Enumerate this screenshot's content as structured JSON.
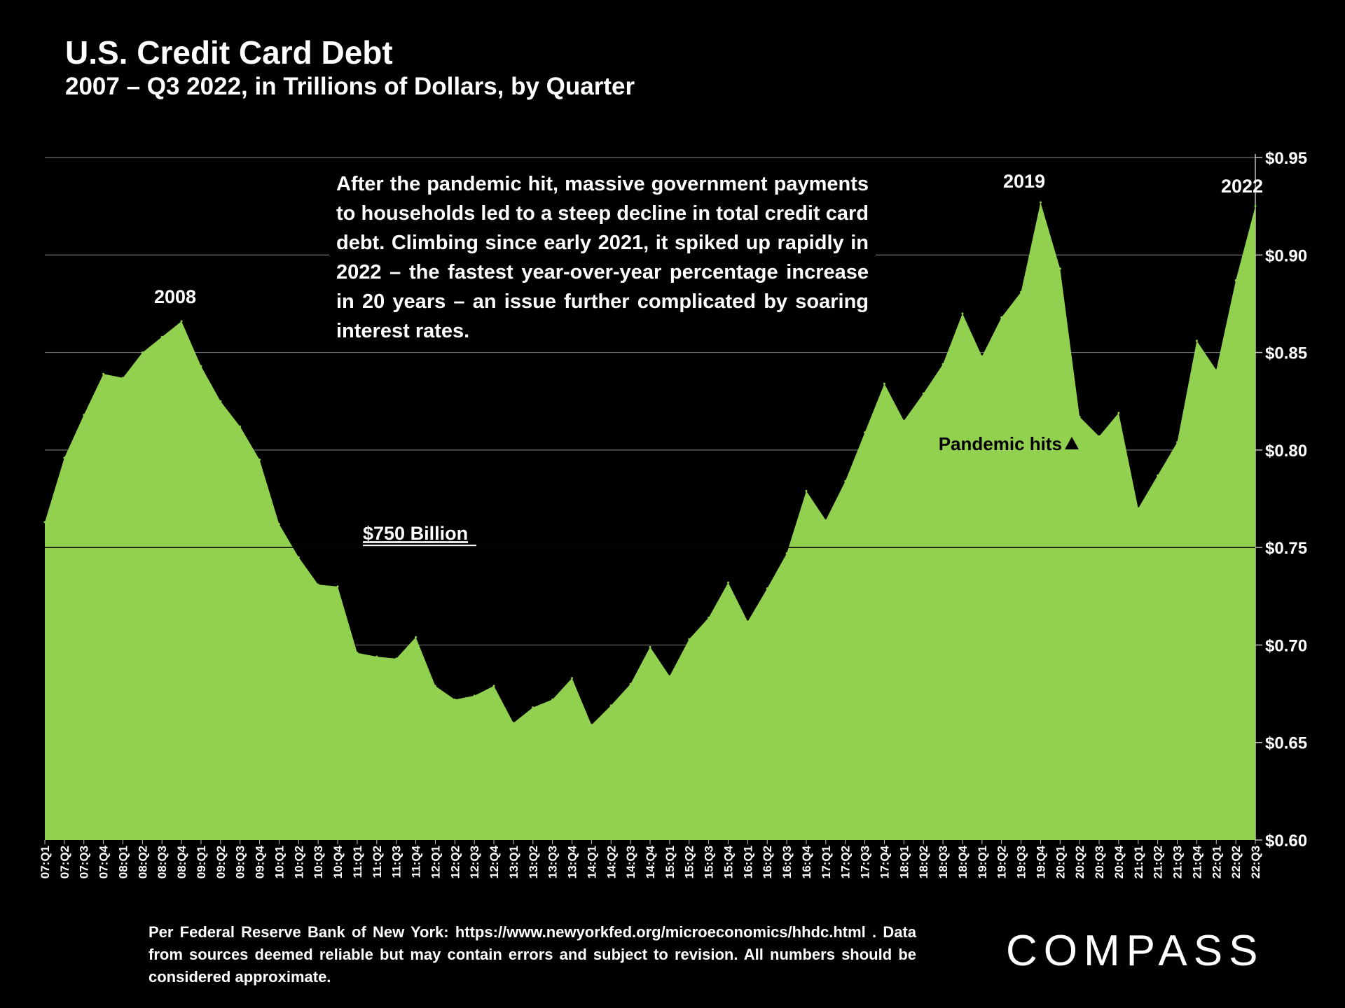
{
  "chart_data": {
    "type": "area",
    "title": "U.S. Credit Card Debt",
    "subtitle": "2007 – Q3 2022, in Trillions of Dollars, by Quarter",
    "x": [
      "07:Q1",
      "07:Q2",
      "07:Q3",
      "07:Q4",
      "08:Q1",
      "08:Q2",
      "08:Q3",
      "08:Q4",
      "09:Q1",
      "09:Q2",
      "09:Q3",
      "09:Q4",
      "10:Q1",
      "10:Q2",
      "10:Q3",
      "10:Q4",
      "11:Q1",
      "11:Q2",
      "11:Q3",
      "11:Q4",
      "12:Q1",
      "12:Q2",
      "12:Q3",
      "12:Q4",
      "13:Q1",
      "13:Q2",
      "13:Q3",
      "13:Q4",
      "14:Q1",
      "14:Q2",
      "14:Q3",
      "14:Q4",
      "15:Q1",
      "15:Q2",
      "15:Q3",
      "15:Q4",
      "16:Q1",
      "16:Q2",
      "16:Q3",
      "16:Q4",
      "17:Q1",
      "17:Q2",
      "17:Q3",
      "17:Q4",
      "18:Q1",
      "18:Q2",
      "18:Q3",
      "18:Q4",
      "19:Q1",
      "19:Q2",
      "19:Q3",
      "19:Q4",
      "20:Q1",
      "20:Q2",
      "20:Q3",
      "20:Q4",
      "21:Q1",
      "21:Q2",
      "21:Q3",
      "21:Q4",
      "22:Q1",
      "22:Q2",
      "22:Q3"
    ],
    "values": [
      0.763,
      0.796,
      0.818,
      0.839,
      0.837,
      0.85,
      0.858,
      0.866,
      0.843,
      0.825,
      0.812,
      0.795,
      0.762,
      0.745,
      0.731,
      0.73,
      0.696,
      0.694,
      0.693,
      0.704,
      0.679,
      0.672,
      0.674,
      0.679,
      0.66,
      0.668,
      0.672,
      0.683,
      0.659,
      0.669,
      0.68,
      0.699,
      0.684,
      0.703,
      0.714,
      0.732,
      0.712,
      0.729,
      0.747,
      0.779,
      0.764,
      0.784,
      0.809,
      0.834,
      0.815,
      0.829,
      0.844,
      0.87,
      0.848,
      0.868,
      0.881,
      0.927,
      0.893,
      0.817,
      0.807,
      0.819,
      0.77,
      0.787,
      0.804,
      0.856,
      0.841,
      0.887,
      0.925
    ],
    "y_ticks": [
      "$0.60",
      "$0.65",
      "$0.70",
      "$0.75",
      "$0.80",
      "$0.85",
      "$0.90",
      "$0.95"
    ],
    "ylim": [
      0.6,
      0.95
    ],
    "grid": true,
    "area_color": "#92d050",
    "line_color": "#000000",
    "reference_line_label": "$750 Billion",
    "reference_line_value": 0.75,
    "annotations": {
      "peak_2008": "2008",
      "peak_2019": "2019",
      "peak_2022": "2022",
      "pandemic": "Pandemic hits"
    }
  },
  "annotation_box_text": "After the pandemic hit, massive government payments to households led to a steep decline in total credit card debt. Climbing since early 2021, it spiked up rapidly in 2022 – the fastest year-over-year percentage increase in 20 years – an issue further complicated by soaring interest rates.",
  "footer": {
    "line1": "Per Federal Reserve Bank of New York: https://www.newyorkfed.org/microeconomics/hhdc.html .",
    "line2": "Data from sources deemed reliable but may contain errors and subject to revision. All numbers should be considered approximate."
  },
  "logo": "COMPASS"
}
